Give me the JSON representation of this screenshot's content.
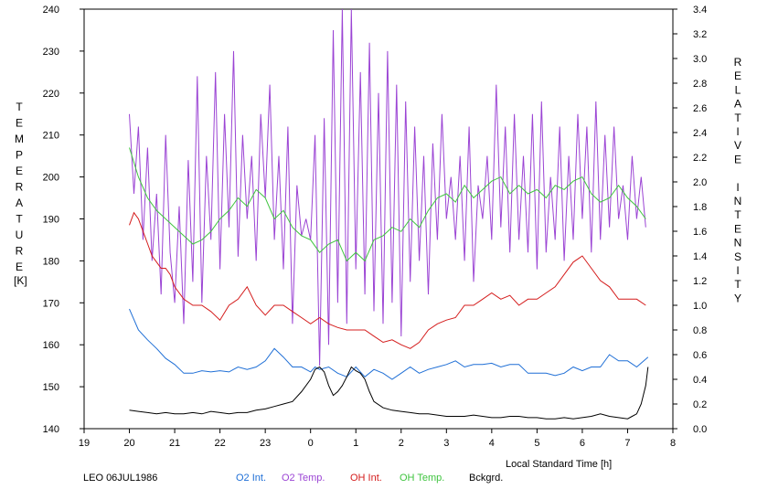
{
  "chart_data": {
    "type": "line",
    "footer_label": "LEO 06JUL1986",
    "xlabel": "Local Standard Time [h]",
    "ylabel_left_letters": [
      "T",
      "E",
      "M",
      "P",
      "E",
      "R",
      "A",
      "T",
      "U",
      "R",
      "E"
    ],
    "ylabel_left_unit": "[K]",
    "ylabel_right_letters": [
      "R",
      "E",
      "L",
      "A",
      "T",
      "I",
      "V",
      "E",
      "",
      "I",
      "N",
      "T",
      "E",
      "N",
      "S",
      "I",
      "T",
      "Y"
    ],
    "x_ticks": [
      "19",
      "20",
      "21",
      "22",
      "23",
      "0",
      "1",
      "2",
      "3",
      "4",
      "5",
      "6",
      "7",
      "8"
    ],
    "y_left_ticks": [
      "140",
      "150",
      "160",
      "170",
      "180",
      "190",
      "200",
      "210",
      "220",
      "230",
      "240"
    ],
    "y_right_ticks": [
      "0.0",
      "0.2",
      "0.4",
      "0.6",
      "0.8",
      "1.0",
      "1.2",
      "1.4",
      "1.6",
      "1.8",
      "2.0",
      "2.2",
      "2.4",
      "2.6",
      "2.8",
      "3.0",
      "3.2",
      "3.4"
    ],
    "x_range_hours_after_19": [
      0,
      13
    ],
    "ylim_left": [
      140,
      240
    ],
    "ylim_right": [
      0,
      3.4
    ],
    "series": [
      {
        "name": "O2 Int.",
        "color": "#1f6fd6",
        "axis": "right",
        "x": [
          1.0,
          1.2,
          1.4,
          1.6,
          1.8,
          2.0,
          2.2,
          2.4,
          2.6,
          2.8,
          3.0,
          3.2,
          3.4,
          3.6,
          3.8,
          4.0,
          4.2,
          4.4,
          4.6,
          4.8,
          5.0,
          5.1,
          5.2,
          5.4,
          5.6,
          5.8,
          6.0,
          6.2,
          6.4,
          6.6,
          6.8,
          7.0,
          7.2,
          7.4,
          7.6,
          7.8,
          8.0,
          8.2,
          8.4,
          8.6,
          8.8,
          9.0,
          9.2,
          9.4,
          9.6,
          9.8,
          10.0,
          10.2,
          10.4,
          10.6,
          10.8,
          11.0,
          11.2,
          11.4,
          11.6,
          11.8,
          12.0,
          12.2,
          12.45
        ],
        "values": [
          0.97,
          0.8,
          0.72,
          0.65,
          0.57,
          0.52,
          0.45,
          0.45,
          0.47,
          0.46,
          0.47,
          0.46,
          0.5,
          0.48,
          0.5,
          0.55,
          0.65,
          0.58,
          0.5,
          0.5,
          0.46,
          0.5,
          0.48,
          0.5,
          0.45,
          0.42,
          0.5,
          0.42,
          0.48,
          0.45,
          0.4,
          0.45,
          0.5,
          0.45,
          0.48,
          0.5,
          0.52,
          0.55,
          0.5,
          0.52,
          0.52,
          0.53,
          0.5,
          0.52,
          0.52,
          0.45,
          0.45,
          0.45,
          0.43,
          0.45,
          0.5,
          0.47,
          0.5,
          0.5,
          0.6,
          0.55,
          0.55,
          0.5,
          0.58
        ]
      },
      {
        "name": "O2 Temp.",
        "color": "#9b44d4",
        "axis": "left",
        "x": [
          1.0,
          1.1,
          1.2,
          1.3,
          1.4,
          1.5,
          1.6,
          1.7,
          1.8,
          1.9,
          2.0,
          2.1,
          2.2,
          2.3,
          2.4,
          2.5,
          2.6,
          2.7,
          2.8,
          2.9,
          3.0,
          3.1,
          3.2,
          3.3,
          3.4,
          3.5,
          3.6,
          3.7,
          3.8,
          3.9,
          4.0,
          4.1,
          4.2,
          4.3,
          4.4,
          4.5,
          4.6,
          4.7,
          4.8,
          4.9,
          5.0,
          5.1,
          5.2,
          5.3,
          5.4,
          5.5,
          5.6,
          5.7,
          5.8,
          5.9,
          6.0,
          6.1,
          6.2,
          6.3,
          6.4,
          6.5,
          6.6,
          6.7,
          6.8,
          6.9,
          7.0,
          7.1,
          7.2,
          7.3,
          7.4,
          7.5,
          7.6,
          7.7,
          7.8,
          7.9,
          8.0,
          8.1,
          8.2,
          8.3,
          8.4,
          8.5,
          8.6,
          8.7,
          8.8,
          8.9,
          9.0,
          9.1,
          9.2,
          9.3,
          9.4,
          9.5,
          9.6,
          9.7,
          9.8,
          9.9,
          10.0,
          10.1,
          10.2,
          10.3,
          10.4,
          10.5,
          10.6,
          10.7,
          10.8,
          10.9,
          11.0,
          11.1,
          11.2,
          11.3,
          11.4,
          11.5,
          11.6,
          11.7,
          11.8,
          11.9,
          12.0,
          12.1,
          12.2,
          12.3,
          12.4
        ],
        "values": [
          215,
          196,
          212,
          185,
          207,
          180,
          196,
          172,
          210,
          182,
          170,
          193,
          165,
          204,
          175,
          224,
          170,
          205,
          185,
          225,
          178,
          215,
          188,
          230,
          181,
          210,
          190,
          205,
          180,
          215,
          195,
          222,
          185,
          205,
          178,
          212,
          165,
          198,
          186,
          190,
          185,
          210,
          155,
          214,
          160,
          235,
          170,
          240,
          165,
          240,
          178,
          225,
          172,
          232,
          168,
          220,
          165,
          230,
          170,
          222,
          162,
          218,
          175,
          212,
          180,
          205,
          172,
          208,
          185,
          215,
          190,
          200,
          185,
          205,
          180,
          212,
          175,
          198,
          190,
          205,
          185,
          222,
          188,
          212,
          182,
          215,
          185,
          205,
          182,
          215,
          178,
          218,
          182,
          200,
          185,
          212,
          180,
          205,
          185,
          215,
          190,
          212,
          182,
          218,
          185,
          210,
          188,
          212,
          190,
          198,
          185,
          205,
          190,
          200,
          188
        ]
      },
      {
        "name": "OH Int.",
        "color": "#d41c1c",
        "axis": "right",
        "x": [
          1.0,
          1.1,
          1.2,
          1.3,
          1.4,
          1.5,
          1.6,
          1.7,
          1.8,
          1.9,
          2.0,
          2.2,
          2.4,
          2.6,
          2.8,
          3.0,
          3.2,
          3.4,
          3.6,
          3.8,
          4.0,
          4.2,
          4.4,
          4.6,
          4.8,
          5.0,
          5.2,
          5.4,
          5.6,
          5.8,
          6.0,
          6.2,
          6.4,
          6.6,
          6.8,
          7.0,
          7.2,
          7.4,
          7.6,
          7.8,
          8.0,
          8.2,
          8.4,
          8.6,
          8.8,
          9.0,
          9.2,
          9.4,
          9.6,
          9.8,
          10.0,
          10.2,
          10.4,
          10.6,
          10.8,
          11.0,
          11.2,
          11.4,
          11.6,
          11.8,
          12.0,
          12.2,
          12.4
        ],
        "values": [
          1.65,
          1.75,
          1.7,
          1.6,
          1.5,
          1.4,
          1.35,
          1.3,
          1.3,
          1.25,
          1.15,
          1.05,
          1.0,
          1.0,
          0.95,
          0.88,
          1.0,
          1.05,
          1.15,
          1.0,
          0.92,
          1.0,
          1.0,
          0.95,
          0.9,
          0.85,
          0.9,
          0.85,
          0.82,
          0.8,
          0.8,
          0.8,
          0.75,
          0.7,
          0.72,
          0.68,
          0.65,
          0.7,
          0.8,
          0.85,
          0.88,
          0.9,
          1.0,
          1.0,
          1.05,
          1.1,
          1.05,
          1.08,
          1.0,
          1.05,
          1.05,
          1.1,
          1.15,
          1.25,
          1.35,
          1.4,
          1.3,
          1.2,
          1.15,
          1.05,
          1.05,
          1.05,
          1.0
        ]
      },
      {
        "name": "OH Temp.",
        "color": "#3fc43f",
        "axis": "left",
        "x": [
          1.0,
          1.2,
          1.4,
          1.6,
          1.8,
          2.0,
          2.2,
          2.4,
          2.6,
          2.8,
          3.0,
          3.2,
          3.4,
          3.6,
          3.8,
          4.0,
          4.2,
          4.4,
          4.6,
          4.8,
          5.0,
          5.2,
          5.4,
          5.6,
          5.8,
          6.0,
          6.2,
          6.4,
          6.6,
          6.8,
          7.0,
          7.2,
          7.4,
          7.6,
          7.8,
          8.0,
          8.2,
          8.4,
          8.6,
          8.8,
          9.0,
          9.2,
          9.4,
          9.6,
          9.8,
          10.0,
          10.2,
          10.4,
          10.6,
          10.8,
          11.0,
          11.2,
          11.4,
          11.6,
          11.8,
          12.0,
          12.2,
          12.4
        ],
        "values": [
          207,
          200,
          195,
          192,
          190,
          188,
          186,
          184,
          185,
          187,
          190,
          192,
          195,
          193,
          197,
          195,
          190,
          192,
          188,
          186,
          185,
          182,
          184,
          185,
          180,
          182,
          180,
          185,
          186,
          188,
          187,
          190,
          188,
          192,
          195,
          196,
          194,
          198,
          195,
          197,
          199,
          200,
          196,
          198,
          196,
          197,
          195,
          198,
          197,
          199,
          200,
          196,
          194,
          195,
          198,
          195,
          193,
          190
        ]
      },
      {
        "name": "Bckgrd.",
        "color": "#000000",
        "axis": "right",
        "x": [
          1.0,
          1.2,
          1.4,
          1.6,
          1.8,
          2.0,
          2.2,
          2.4,
          2.6,
          2.8,
          3.0,
          3.2,
          3.4,
          3.6,
          3.8,
          4.0,
          4.2,
          4.4,
          4.6,
          4.8,
          5.0,
          5.1,
          5.2,
          5.3,
          5.4,
          5.5,
          5.6,
          5.7,
          5.8,
          5.9,
          6.0,
          6.1,
          6.2,
          6.3,
          6.4,
          6.6,
          6.8,
          7.0,
          7.2,
          7.4,
          7.6,
          7.8,
          8.0,
          8.2,
          8.4,
          8.6,
          8.8,
          9.0,
          9.2,
          9.4,
          9.6,
          9.8,
          10.0,
          10.2,
          10.4,
          10.6,
          10.8,
          11.0,
          11.2,
          11.4,
          11.6,
          11.8,
          12.0,
          12.1,
          12.2,
          12.3,
          12.4,
          12.45
        ],
        "values": [
          0.15,
          0.14,
          0.13,
          0.12,
          0.13,
          0.12,
          0.12,
          0.13,
          0.12,
          0.14,
          0.13,
          0.12,
          0.13,
          0.13,
          0.15,
          0.16,
          0.18,
          0.2,
          0.22,
          0.3,
          0.4,
          0.48,
          0.5,
          0.46,
          0.35,
          0.27,
          0.3,
          0.35,
          0.42,
          0.5,
          0.47,
          0.45,
          0.4,
          0.3,
          0.22,
          0.17,
          0.15,
          0.14,
          0.13,
          0.12,
          0.12,
          0.11,
          0.1,
          0.1,
          0.1,
          0.11,
          0.1,
          0.09,
          0.09,
          0.1,
          0.1,
          0.09,
          0.09,
          0.08,
          0.08,
          0.09,
          0.08,
          0.09,
          0.1,
          0.12,
          0.1,
          0.09,
          0.08,
          0.1,
          0.12,
          0.2,
          0.35,
          0.5
        ]
      }
    ]
  }
}
